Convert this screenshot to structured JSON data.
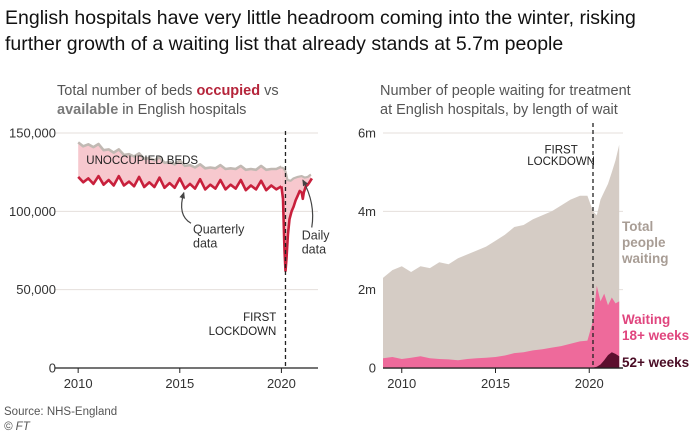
{
  "headline": [
    "English hospitals have very little headroom coming into the winter, risking",
    "further growth of a waiting list that already stands at 5.7m people"
  ],
  "subtitles": {
    "left": {
      "line1_pre": "Total number of beds ",
      "line1_occupied": "occupied",
      "line1_post": " vs",
      "line2_available": "available",
      "line2_post": " in English hospitals"
    },
    "right": {
      "line1": "Number of people waiting for treatment",
      "line2": "at English hospitals, by length of wait"
    }
  },
  "colors": {
    "available": "#c1b9b3",
    "occupied": "#c8203c",
    "unoccupied_fill": "#f7c8ce",
    "total_fill": "#d5ccc5",
    "wait18_fill": "#ee6a9b",
    "wait52_fill": "#5c0f2e",
    "grid": "#e4dfdb",
    "text": "#333333"
  },
  "footer": {
    "source": "Source: NHS-England",
    "credit": "© FT"
  },
  "chart_data": [
    {
      "type": "area",
      "title": "Total number of beds occupied vs available in English hospitals",
      "xlabel": "",
      "ylabel": "",
      "xlim": [
        2009.5,
        2021.8
      ],
      "ylim": [
        0,
        150000
      ],
      "x_ticks": [
        2010,
        2015,
        2020
      ],
      "y_ticks": [
        0,
        50000,
        100000,
        150000
      ],
      "y_tick_labels": [
        "0",
        "50,000",
        "100,000",
        "150,000"
      ],
      "grid": true,
      "series": [
        {
          "name": "available",
          "x": [
            2010.0,
            2010.25,
            2010.5,
            2010.75,
            2011.0,
            2011.25,
            2011.5,
            2011.75,
            2012.0,
            2012.25,
            2012.5,
            2012.75,
            2013.0,
            2013.25,
            2013.5,
            2013.75,
            2014.0,
            2014.25,
            2014.5,
            2014.75,
            2015.0,
            2015.25,
            2015.5,
            2015.75,
            2016.0,
            2016.25,
            2016.5,
            2016.75,
            2017.0,
            2017.25,
            2017.5,
            2017.75,
            2018.0,
            2018.25,
            2018.5,
            2018.75,
            2019.0,
            2019.25,
            2019.5,
            2019.75,
            2020.0
          ],
          "values": [
            144000,
            141500,
            142800,
            141000,
            143000,
            139000,
            139500,
            137500,
            139500,
            136000,
            136500,
            135000,
            137000,
            133500,
            134000,
            132500,
            134500,
            131000,
            131500,
            130000,
            132500,
            129000,
            129500,
            128000,
            130000,
            127500,
            128000,
            127500,
            129500,
            127000,
            127500,
            127000,
            129000,
            126500,
            127000,
            126500,
            129000,
            126500,
            127000,
            127000,
            128500
          ]
        },
        {
          "name": "occupied",
          "x": [
            2010.0,
            2010.25,
            2010.5,
            2010.75,
            2011.0,
            2011.25,
            2011.5,
            2011.75,
            2012.0,
            2012.25,
            2012.5,
            2012.75,
            2013.0,
            2013.25,
            2013.5,
            2013.75,
            2014.0,
            2014.25,
            2014.5,
            2014.75,
            2015.0,
            2015.25,
            2015.5,
            2015.75,
            2016.0,
            2016.25,
            2016.5,
            2016.75,
            2017.0,
            2017.25,
            2017.5,
            2017.75,
            2018.0,
            2018.25,
            2018.5,
            2018.75,
            2019.0,
            2019.25,
            2019.5,
            2019.75,
            2020.0
          ],
          "values": [
            122000,
            118500,
            121000,
            117500,
            122500,
            117000,
            120000,
            116500,
            122500,
            116500,
            119000,
            116000,
            122000,
            115500,
            118500,
            115500,
            121500,
            115000,
            118000,
            115000,
            121000,
            114500,
            117500,
            114500,
            120500,
            114000,
            117000,
            114500,
            120000,
            114000,
            117000,
            114500,
            120000,
            113500,
            116500,
            114000,
            119500,
            113500,
            116500,
            114000,
            116000
          ]
        },
        {
          "name": "available (daily)",
          "x": [
            2020.0,
            2020.1,
            2020.2,
            2020.3,
            2020.45,
            2020.6,
            2020.8,
            2021.0,
            2021.15,
            2021.3,
            2021.45
          ],
          "values": [
            128000,
            127500,
            125500,
            120000,
            119500,
            121000,
            122000,
            122500,
            121500,
            122000,
            123500
          ]
        },
        {
          "name": "occupied (daily)",
          "x": [
            2020.0,
            2020.08,
            2020.15,
            2020.2,
            2020.25,
            2020.32,
            2020.4,
            2020.5,
            2020.6,
            2020.7,
            2020.8,
            2020.9,
            2021.0,
            2021.05,
            2021.1,
            2021.2,
            2021.3,
            2021.4,
            2021.5
          ],
          "values": [
            116000,
            108000,
            75000,
            62000,
            70000,
            85000,
            95000,
            100000,
            103000,
            107000,
            110000,
            113000,
            112000,
            108000,
            112000,
            116000,
            117000,
            119000,
            121000
          ]
        }
      ],
      "annotations": [
        {
          "text": "UNOCCUPIED BEDS",
          "x": 2010.4,
          "y": 132000
        },
        {
          "text": "Quarterly",
          "x": 2015.65,
          "y": 86000
        },
        {
          "text": "data",
          "x": 2015.65,
          "y": 77000
        },
        {
          "text": "Daily",
          "x": 2021.0,
          "y": 82000
        },
        {
          "text": "data",
          "x": 2021.0,
          "y": 73000
        },
        {
          "text": "FIRST",
          "x": 2019.75,
          "y": 30000
        },
        {
          "text": "LOCKDOWN",
          "x": 2019.75,
          "y": 21000
        }
      ],
      "event_line_x": 2020.2
    },
    {
      "type": "area",
      "title": "Number of people waiting for treatment at English hospitals, by length of wait",
      "xlabel": "",
      "ylabel": "",
      "xlim": [
        2009.0,
        2021.8
      ],
      "ylim": [
        0,
        6000000
      ],
      "x_ticks": [
        2010,
        2015,
        2020
      ],
      "y_ticks": [
        0,
        2000000,
        4000000,
        6000000
      ],
      "y_tick_labels": [
        "0",
        "2m",
        "4m",
        "6m"
      ],
      "grid": true,
      "series": [
        {
          "name": "Total people waiting",
          "x": [
            2009.0,
            2009.5,
            2010.0,
            2010.5,
            2011.0,
            2011.5,
            2012.0,
            2012.5,
            2013.0,
            2013.5,
            2014.0,
            2014.5,
            2015.0,
            2015.5,
            2016.0,
            2016.5,
            2017.0,
            2017.5,
            2018.0,
            2018.5,
            2019.0,
            2019.5,
            2019.9,
            2020.2,
            2020.4,
            2020.6,
            2020.8,
            2021.0,
            2021.2,
            2021.4,
            2021.6
          ],
          "values": [
            2300000,
            2500000,
            2600000,
            2450000,
            2600000,
            2550000,
            2700000,
            2650000,
            2800000,
            2900000,
            3000000,
            3100000,
            3250000,
            3400000,
            3600000,
            3650000,
            3800000,
            3900000,
            4000000,
            4150000,
            4300000,
            4400000,
            4400000,
            4000000,
            3900000,
            4300000,
            4500000,
            4700000,
            5000000,
            5300000,
            5700000
          ]
        },
        {
          "name": "Waiting 18+ weeks",
          "x": [
            2009.0,
            2009.5,
            2010.0,
            2010.5,
            2011.0,
            2011.5,
            2012.0,
            2012.5,
            2013.0,
            2013.5,
            2014.0,
            2014.5,
            2015.0,
            2015.5,
            2016.0,
            2016.5,
            2017.0,
            2017.5,
            2018.0,
            2018.5,
            2019.0,
            2019.5,
            2019.9,
            2020.2,
            2020.4,
            2020.6,
            2020.8,
            2021.0,
            2021.2,
            2021.4,
            2021.6
          ],
          "values": [
            250000,
            280000,
            230000,
            260000,
            300000,
            250000,
            230000,
            220000,
            200000,
            230000,
            250000,
            260000,
            280000,
            320000,
            380000,
            400000,
            450000,
            480000,
            520000,
            560000,
            620000,
            680000,
            700000,
            1200000,
            2100000,
            1700000,
            1900000,
            1600000,
            1800000,
            1650000,
            1700000
          ]
        },
        {
          "name": "52+ weeks",
          "x": [
            2009.0,
            2019.9,
            2020.2,
            2020.4,
            2020.6,
            2020.8,
            2021.0,
            2021.2,
            2021.4,
            2021.6
          ],
          "values": [
            0,
            2000,
            10000,
            30000,
            90000,
            200000,
            330000,
            400000,
            360000,
            300000
          ]
        }
      ],
      "series_labels": [
        {
          "lines": [
            "Total",
            "people",
            "waiting"
          ]
        },
        {
          "lines": [
            "Waiting",
            "18+ weeks"
          ]
        },
        {
          "lines": [
            "52+ weeks"
          ]
        }
      ],
      "annotations": [
        {
          "text": "FIRST",
          "x": 2018.5,
          "y": 5480000
        },
        {
          "text": "LOCKDOWN",
          "x": 2018.5,
          "y": 5180000
        }
      ],
      "event_line_x": 2020.2
    }
  ]
}
